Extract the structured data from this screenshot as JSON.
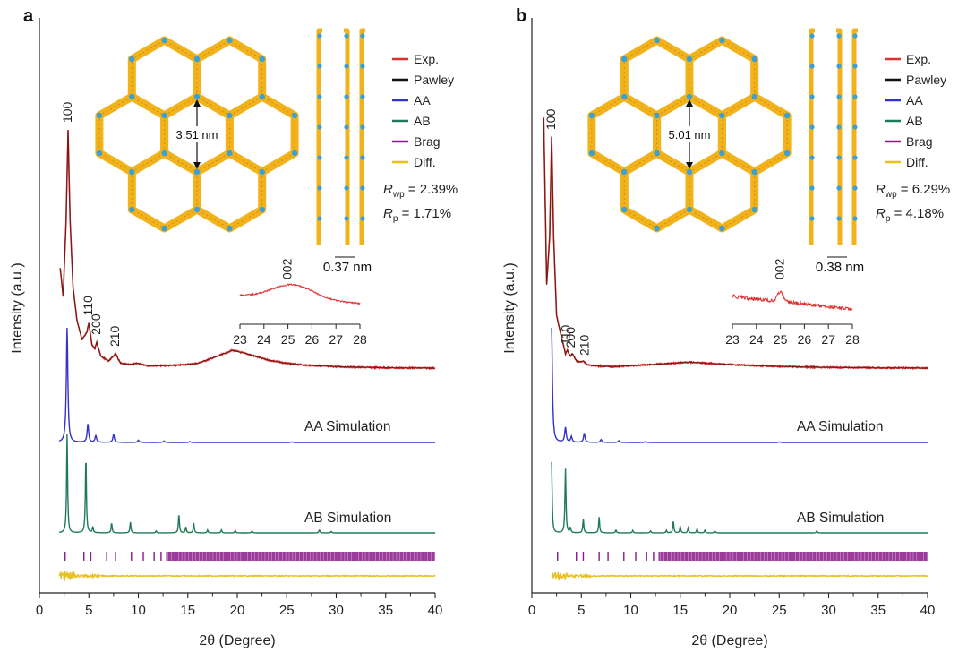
{
  "colors": {
    "exp": "#e03030",
    "pawley": "#111111",
    "aa": "#3333cc",
    "ab": "#1f7a55",
    "brag": "#8a1a8a",
    "diff": "#e8c020",
    "framework": "#f2b21b",
    "node": "#3aa0d8",
    "axis": "#222222"
  },
  "chart_data": [
    {
      "type": "line",
      "panel_label": "a",
      "xlabel": "2θ (Degree)",
      "ylabel": "Intensity (a.u.)",
      "xlim": [
        0,
        40
      ],
      "x_ticks": [
        0,
        5,
        10,
        15,
        20,
        25,
        30,
        35,
        40
      ],
      "legend": [
        "Exp.",
        "Pawley",
        "AA",
        "AB",
        "Brag",
        "Diff."
      ],
      "stats": [
        {
          "label": "R",
          "sub": "wp",
          "value": " = 2.39%"
        },
        {
          "label": "R",
          "sub": "p",
          "value": " = 1.71%"
        }
      ],
      "pore_label": "3.51 nm",
      "layer_label": "0.37 nm",
      "sim_labels": {
        "aa": "AA Simulation",
        "ab": "AB Simulation"
      },
      "exp_peaks": [
        {
          "label": "100",
          "x": 2.9
        },
        {
          "label": "110",
          "x": 5.0
        },
        {
          "label": "200",
          "x": 5.8
        },
        {
          "label": "210",
          "x": 7.7
        }
      ],
      "exp_pattern": {
        "x": [
          2.1,
          2.4,
          2.7,
          2.9,
          3.1,
          3.4,
          3.8,
          4.3,
          4.8,
          5.0,
          5.3,
          5.6,
          5.8,
          6.2,
          7.0,
          7.7,
          8.2,
          9.0,
          10.0,
          11.0,
          12.0,
          14.0,
          16.0,
          18.0,
          19.5,
          21.0,
          23.0,
          25.0,
          27.0,
          30.0,
          33.0,
          36.0,
          40.0
        ],
        "y": [
          0.42,
          0.3,
          0.62,
          1.0,
          0.62,
          0.34,
          0.2,
          0.12,
          0.15,
          0.19,
          0.1,
          0.08,
          0.11,
          0.05,
          0.03,
          0.06,
          0.02,
          0.015,
          0.02,
          0.01,
          0.01,
          0.012,
          0.02,
          0.05,
          0.075,
          0.06,
          0.035,
          0.02,
          0.012,
          0.006,
          0.003,
          0.001,
          0.0
        ]
      },
      "aa_peaks": [
        {
          "x": 2.8,
          "h": 1.0
        },
        {
          "x": 4.9,
          "h": 0.16
        },
        {
          "x": 5.7,
          "h": 0.06
        },
        {
          "x": 7.5,
          "h": 0.07
        },
        {
          "x": 10.0,
          "h": 0.02
        },
        {
          "x": 12.6,
          "h": 0.012
        },
        {
          "x": 15.2,
          "h": 0.008
        },
        {
          "x": 25.5,
          "h": 0.006
        }
      ],
      "ab_peaks": [
        {
          "x": 2.8,
          "h": 1.0
        },
        {
          "x": 4.7,
          "h": 0.78
        },
        {
          "x": 5.4,
          "h": 0.06
        },
        {
          "x": 7.3,
          "h": 0.1
        },
        {
          "x": 9.2,
          "h": 0.11
        },
        {
          "x": 11.8,
          "h": 0.02
        },
        {
          "x": 14.1,
          "h": 0.19
        },
        {
          "x": 14.8,
          "h": 0.06
        },
        {
          "x": 15.6,
          "h": 0.1
        },
        {
          "x": 17.0,
          "h": 0.03
        },
        {
          "x": 18.4,
          "h": 0.03
        },
        {
          "x": 19.8,
          "h": 0.025
        },
        {
          "x": 21.5,
          "h": 0.02
        },
        {
          "x": 28.3,
          "h": 0.03
        },
        {
          "x": 29.5,
          "h": 0.015
        }
      ],
      "inset": {
        "xlabel_ticks": [
          23,
          24,
          25,
          26,
          27,
          28
        ],
        "xlim": [
          23,
          28
        ],
        "peak_label": "002",
        "peak_x": 25,
        "shape": "broad"
      }
    },
    {
      "type": "line",
      "panel_label": "b",
      "xlabel": "2θ (Degree)",
      "ylabel": "Intensity (a.u.)",
      "xlim": [
        0,
        40
      ],
      "x_ticks": [
        0,
        5,
        10,
        15,
        20,
        25,
        30,
        35,
        40
      ],
      "legend": [
        "Exp.",
        "Pawley",
        "AA",
        "AB",
        "Brag",
        "Diff."
      ],
      "stats": [
        {
          "label": "R",
          "sub": "wp",
          "value": " = 6.29%"
        },
        {
          "label": "R",
          "sub": "p",
          "value": " = 4.18%"
        }
      ],
      "pore_label": "5.01 nm",
      "layer_label": "0.38 nm",
      "sim_labels": {
        "aa": "AA Simulation",
        "ab": "AB Simulation"
      },
      "exp_peaks": [
        {
          "label": "100",
          "x": 2.0
        },
        {
          "label": "110",
          "x": 3.5
        },
        {
          "label": "200",
          "x": 4.0
        },
        {
          "label": "210",
          "x": 5.4
        }
      ],
      "exp_pattern": {
        "x": [
          1.2,
          1.5,
          1.8,
          2.0,
          2.2,
          2.5,
          3.0,
          3.4,
          3.6,
          3.9,
          4.1,
          4.6,
          5.2,
          5.6,
          6.2,
          7.0,
          8.0,
          10.0,
          12.0,
          14.0,
          16.0,
          18.0,
          20.0,
          23.0,
          26.0,
          30.0,
          35.0,
          40.0
        ],
        "y": [
          1.05,
          0.35,
          0.55,
          0.97,
          0.55,
          0.22,
          0.13,
          0.06,
          0.075,
          0.05,
          0.06,
          0.025,
          0.03,
          0.015,
          0.01,
          0.008,
          0.006,
          0.01,
          0.015,
          0.02,
          0.025,
          0.02,
          0.015,
          0.01,
          0.006,
          0.003,
          0.001,
          0.0
        ]
      },
      "aa_peaks": [
        {
          "x": 2.0,
          "h": 1.0
        },
        {
          "x": 3.4,
          "h": 0.13
        },
        {
          "x": 4.0,
          "h": 0.05
        },
        {
          "x": 5.3,
          "h": 0.08
        },
        {
          "x": 7.0,
          "h": 0.025
        },
        {
          "x": 8.8,
          "h": 0.015
        },
        {
          "x": 11.5,
          "h": 0.008
        },
        {
          "x": 25.0,
          "h": 0.005
        }
      ],
      "ab_peaks": [
        {
          "x": 2.0,
          "h": 0.72
        },
        {
          "x": 3.4,
          "h": 0.65
        },
        {
          "x": 3.9,
          "h": 0.05
        },
        {
          "x": 5.2,
          "h": 0.14
        },
        {
          "x": 6.8,
          "h": 0.16
        },
        {
          "x": 8.5,
          "h": 0.03
        },
        {
          "x": 10.2,
          "h": 0.025
        },
        {
          "x": 12.0,
          "h": 0.02
        },
        {
          "x": 13.6,
          "h": 0.025
        },
        {
          "x": 14.3,
          "h": 0.12
        },
        {
          "x": 15.0,
          "h": 0.07
        },
        {
          "x": 15.8,
          "h": 0.05
        },
        {
          "x": 16.7,
          "h": 0.04
        },
        {
          "x": 17.5,
          "h": 0.03
        },
        {
          "x": 18.5,
          "h": 0.02
        },
        {
          "x": 28.8,
          "h": 0.02
        }
      ],
      "inset": {
        "xlabel_ticks": [
          23,
          24,
          25,
          26,
          27,
          28
        ],
        "xlim": [
          23,
          28
        ],
        "peak_label": "002",
        "peak_x": 25,
        "shape": "sharp"
      }
    }
  ]
}
